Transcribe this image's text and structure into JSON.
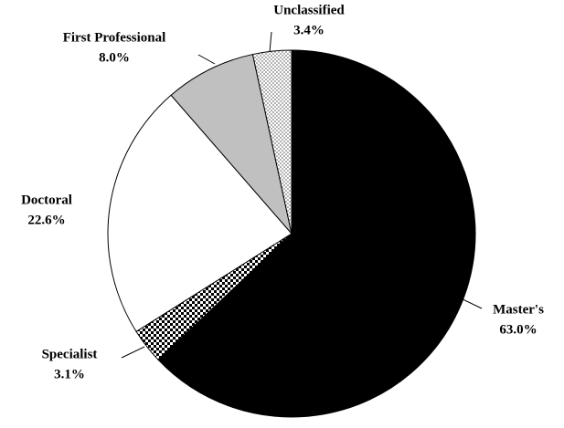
{
  "chart_data": {
    "type": "pie",
    "categories": [
      "Master's",
      "Specialist",
      "Doctoral",
      "First Professional",
      "Unclassified"
    ],
    "values": [
      63.0,
      3.1,
      22.6,
      8.0,
      3.4
    ],
    "value_labels": [
      "63.0%",
      "3.1%",
      "22.6%",
      "8.0%",
      "3.4%"
    ],
    "fills": [
      "#000000",
      "checker",
      "#ffffff",
      "#c0c0c0",
      "dots"
    ]
  }
}
